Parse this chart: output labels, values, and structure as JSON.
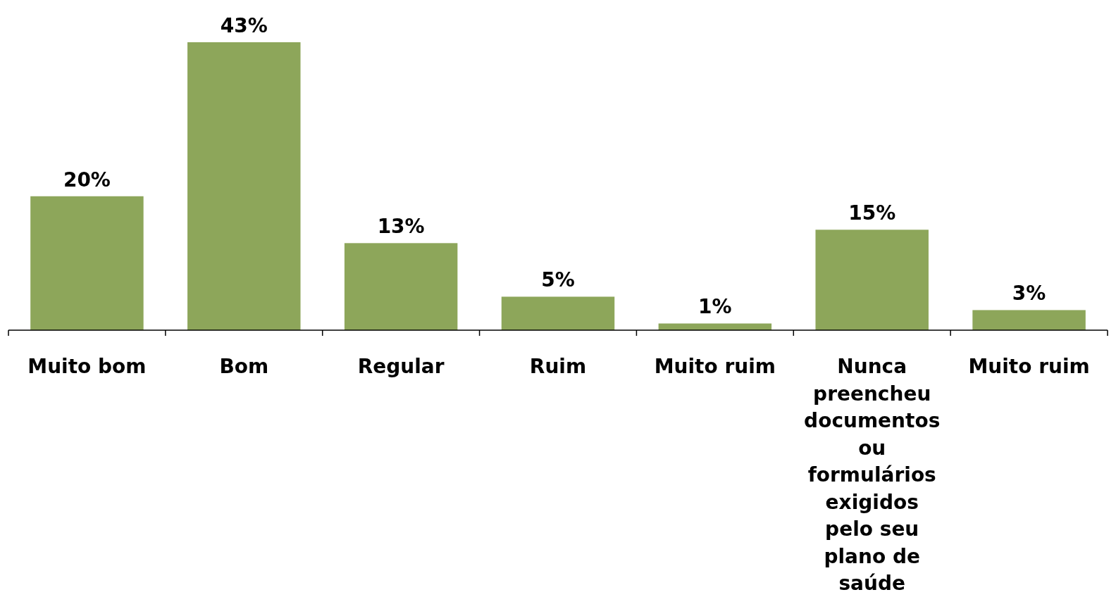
{
  "chart_data": {
    "type": "bar",
    "categories": [
      "Muito bom",
      "Bom",
      "Regular",
      "Ruim",
      "Muito ruim",
      "Nunca preencheu documentos ou formulários exigidos pelo seu plano de saúde",
      "Muito ruim"
    ],
    "values": [
      20,
      43,
      13,
      5,
      1,
      15,
      3
    ],
    "value_labels": [
      "20%",
      "43%",
      "13%",
      "5%",
      "1%",
      "15%",
      "3%"
    ],
    "color": "#8da65a"
  }
}
